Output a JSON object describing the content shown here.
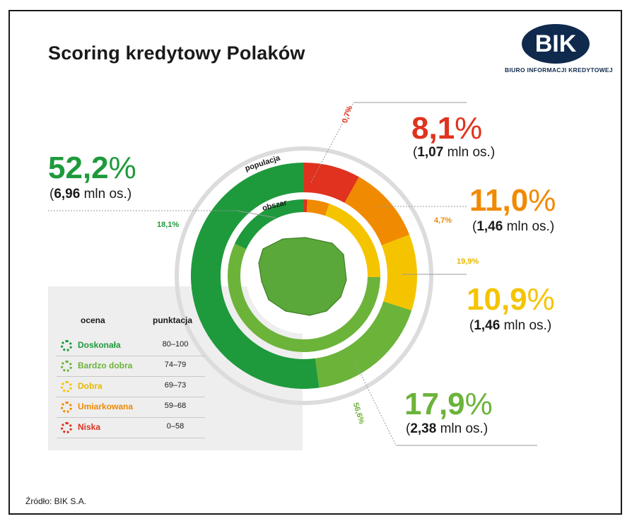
{
  "title": "Scoring kredytowy Polaków",
  "logo": {
    "text": "BIK",
    "subtitle": "BIURO INFORMACJI KREDYTOWEJ"
  },
  "source": "Źródło: BIK S.A.",
  "ring_labels": {
    "outer": "populacja",
    "inner": "obszar"
  },
  "colors": {
    "doskonala": "#1e9a3c",
    "bardzo_dobra": "#6cb33a",
    "dobra": "#f5c400",
    "umiarkowana": "#f08a00",
    "niska": "#e0321e"
  },
  "stats": [
    {
      "pct": "52,2",
      "suffix": "%",
      "count": "6,96",
      "unit": "mln os.",
      "color": "#1e9a3c"
    },
    {
      "pct": "8,1",
      "suffix": "%",
      "count": "1,07",
      "unit": "mln os.",
      "color": "#e0321e"
    },
    {
      "pct": "11,0",
      "suffix": "%",
      "count": "1,46",
      "unit": "mln os.",
      "color": "#f08a00"
    },
    {
      "pct": "10,9",
      "suffix": "%",
      "count": "1,46",
      "unit": "mln os.",
      "color": "#f5c400"
    },
    {
      "pct": "17,9",
      "suffix": "%",
      "count": "2,38",
      "unit": "mln os.",
      "color": "#6cb33a"
    }
  ],
  "legend": {
    "col1": "ocena",
    "col2": "punktacja",
    "rows": [
      {
        "name": "Doskonała",
        "range": "80–100",
        "color": "#1e9a3c"
      },
      {
        "name": "Bardzo dobra",
        "range": "74–79",
        "color": "#6cb33a"
      },
      {
        "name": "Dobra",
        "range": "69–73",
        "color": "#e6b800"
      },
      {
        "name": "Umiarkowana",
        "range": "59–68",
        "color": "#f08a00"
      },
      {
        "name": "Niska",
        "range": "0–58",
        "color": "#e0321e"
      }
    ]
  },
  "chart_data": {
    "type": "pie",
    "rings": [
      {
        "name": "populacja",
        "categories": [
          "Niska",
          "Umiarkowana",
          "Dobra",
          "Bardzo dobra",
          "Doskonała"
        ],
        "values": [
          8.1,
          11.0,
          10.9,
          17.9,
          52.2
        ]
      },
      {
        "name": "obszar",
        "categories": [
          "Niska",
          "Umiarkowana",
          "Dobra",
          "Bardzo dobra",
          "Doskonała"
        ],
        "values": [
          0.7,
          4.7,
          19.9,
          56.6,
          18.1
        ]
      }
    ],
    "annotations": [
      "0,7%",
      "4,7%",
      "19,9%",
      "56,6%",
      "18,1%"
    ]
  },
  "area_labels": [
    {
      "text": "0,7%",
      "color": "#e0321e"
    },
    {
      "text": "4,7%",
      "color": "#f08a00"
    },
    {
      "text": "19,9%",
      "color": "#e6b800"
    },
    {
      "text": "56,6%",
      "color": "#6cb33a"
    },
    {
      "text": "18,1%",
      "color": "#1e9a3c"
    }
  ]
}
